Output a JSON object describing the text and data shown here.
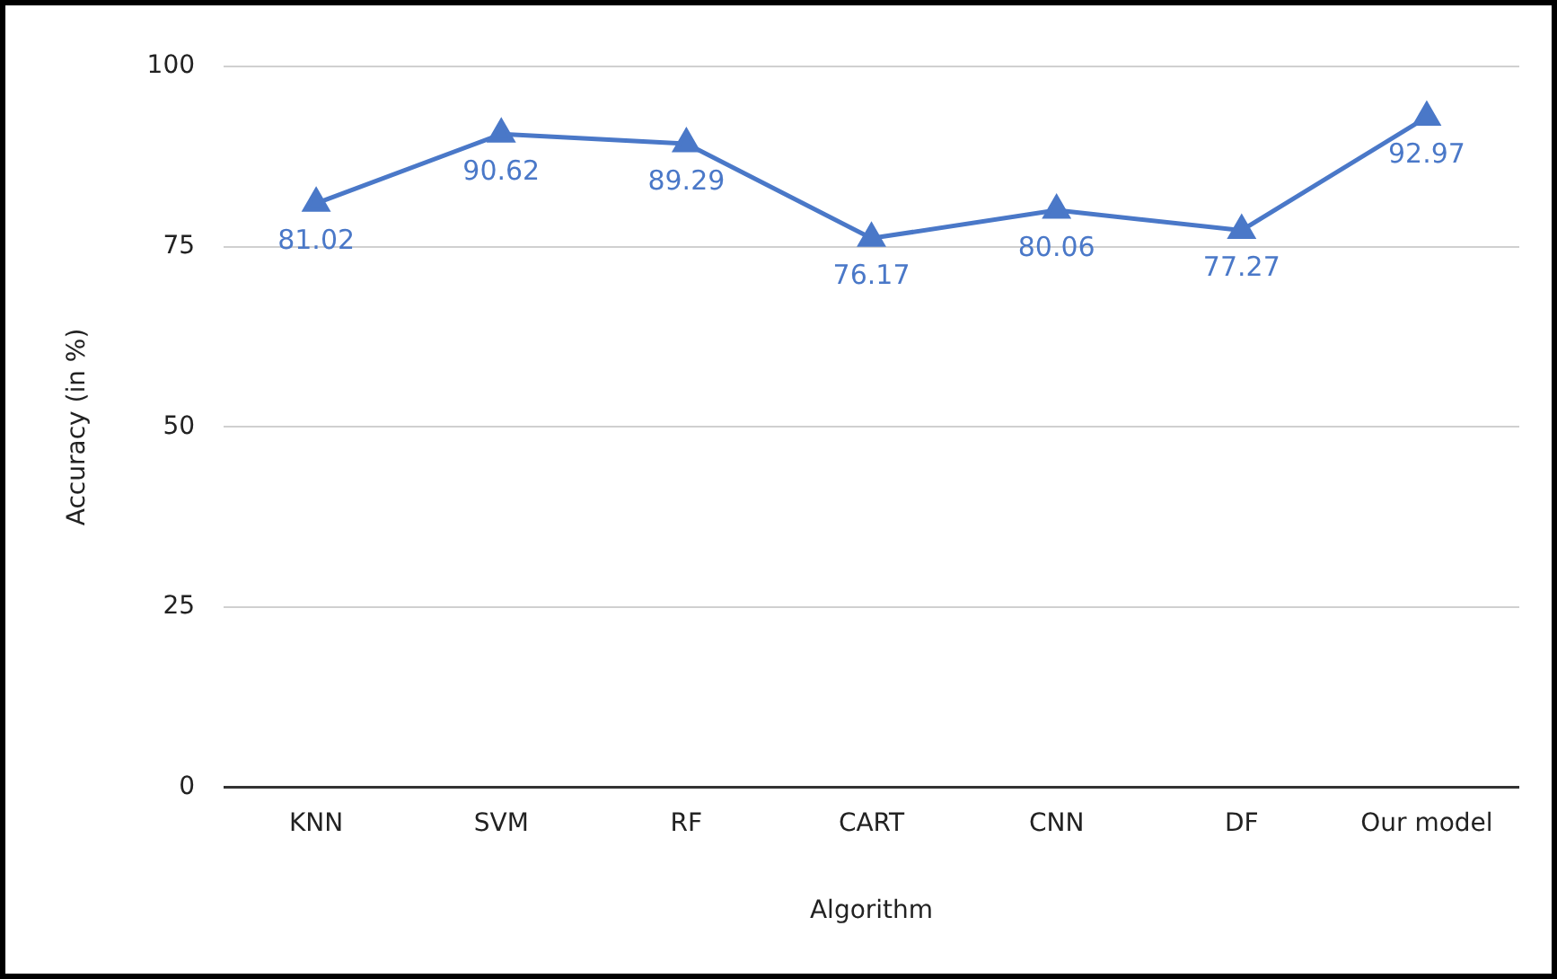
{
  "chart_data": {
    "type": "line",
    "xlabel": "Algorithm",
    "ylabel": "Accuracy (in %)",
    "categories": [
      "KNN",
      "SVM",
      "RF",
      "CART",
      "CNN",
      "DF",
      "Our model"
    ],
    "series": [
      {
        "color": "#4a78c8",
        "values": [
          81.02,
          90.62,
          89.29,
          76.17,
          80.06,
          77.27,
          92.97
        ]
      }
    ],
    "ylim": [
      0,
      100
    ],
    "yticks": [
      0,
      25,
      50,
      75,
      100
    ],
    "grid": "y",
    "legend": false,
    "marker": "triangle",
    "line_style": "solid",
    "data_labels": true
  }
}
